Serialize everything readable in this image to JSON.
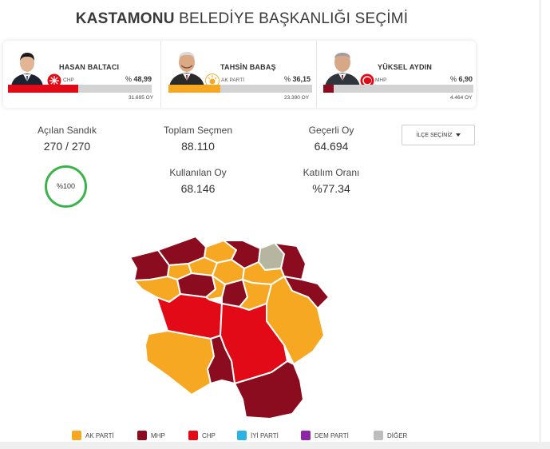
{
  "header": {
    "title_bold": "KASTAMONU",
    "title_rest": "BELEDİYE BAŞKANLIĞI SEÇİMİ"
  },
  "candidates": [
    {
      "name": "HASAN BALTACI",
      "party": "CHP",
      "pct_label": "%",
      "pct": "48,99",
      "pct_value": 48.99,
      "votes": "31.695 OY",
      "color": "#e30a17"
    },
    {
      "name": "TAHSİN BABAŞ",
      "party": "AK PARTİ",
      "pct_label": "%",
      "pct": "36,15",
      "pct_value": 36.15,
      "votes": "23.390 OY",
      "color": "#f7a823"
    },
    {
      "name": "YÜKSEL AYDIN",
      "party": "MHP",
      "pct_label": "%",
      "pct": "6,90",
      "pct_value": 6.9,
      "votes": "4.464 OY",
      "color": "#8a0c1e"
    }
  ],
  "stats": {
    "opened_boxes_label": "Açılan Sandık",
    "opened_boxes_value": "270 / 270",
    "total_voters_label": "Toplam Seçmen",
    "total_voters_value": "88.110",
    "valid_votes_label": "Geçerli Oy",
    "valid_votes_value": "64.694",
    "used_votes_label": "Kullanılan Oy",
    "used_votes_value": "68.146",
    "turnout_label": "Katılım Oranı",
    "turnout_value": "%77.34",
    "opened_pct": "%100",
    "opened_fraction": 1.0
  },
  "district_select": {
    "label": "İLÇE SEÇİNİZ"
  },
  "legend": [
    {
      "label": "AK PARTİ",
      "color": "#f7a823"
    },
    {
      "label": "MHP",
      "color": "#8a0c1e"
    },
    {
      "label": "CHP",
      "color": "#e30a17"
    },
    {
      "label": "İYİ PARTİ",
      "color": "#2ab3e6"
    },
    {
      "label": "DEM PARTİ",
      "color": "#8e24aa"
    },
    {
      "label": "DİĞER",
      "color": "#bdbdbd"
    }
  ]
}
